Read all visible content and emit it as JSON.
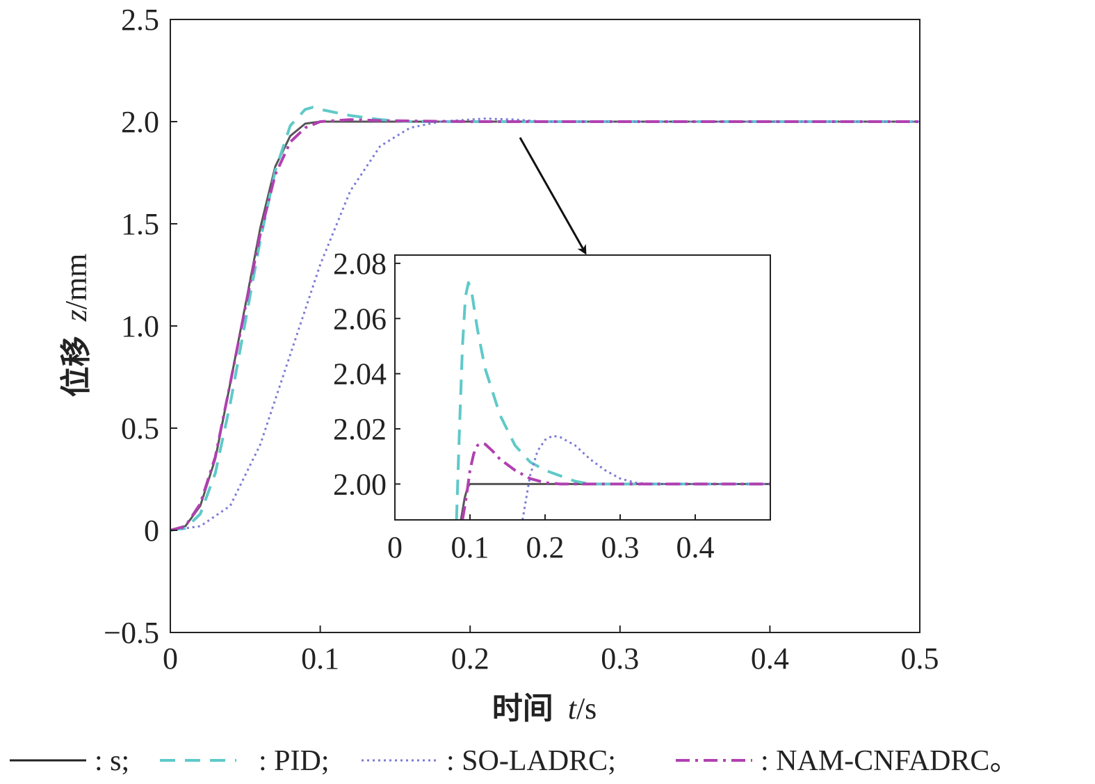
{
  "chart_data": [
    {
      "type": "line",
      "name": "main",
      "xlabel_cn": "时间",
      "xlabel_var": "t",
      "xlabel_unit": "/s",
      "ylabel_cn": "位移",
      "ylabel_var": "z",
      "ylabel_unit": "/mm",
      "xlim": [
        0,
        0.5
      ],
      "ylim": [
        -0.5,
        2.5
      ],
      "xticks": [
        0,
        0.1,
        0.2,
        0.3,
        0.4,
        0.5
      ],
      "xtick_labels": [
        "0",
        "0.1",
        "0.2",
        "0.3",
        "0.4",
        "0.5"
      ],
      "yticks": [
        -0.5,
        0,
        0.5,
        1.0,
        1.5,
        2.0,
        2.5
      ],
      "ytick_labels": [
        "−0.5",
        "0",
        "0.5",
        "1.0",
        "1.5",
        "2.0",
        "2.5"
      ],
      "series": [
        {
          "name": "s",
          "color": "#555555",
          "dash": "solid",
          "x": [
            0,
            0.01,
            0.02,
            0.03,
            0.04,
            0.05,
            0.06,
            0.07,
            0.08,
            0.09,
            0.1,
            0.2,
            0.3,
            0.4,
            0.5
          ],
          "y": [
            0,
            0.02,
            0.12,
            0.35,
            0.72,
            1.1,
            1.48,
            1.78,
            1.93,
            1.99,
            2.0,
            2.0,
            2.0,
            2.0,
            2.0
          ]
        },
        {
          "name": "PID",
          "color": "#5fc9c9",
          "dash": "dashed",
          "x": [
            0,
            0.01,
            0.02,
            0.03,
            0.04,
            0.05,
            0.06,
            0.07,
            0.08,
            0.09,
            0.095,
            0.1,
            0.12,
            0.14,
            0.16,
            0.2,
            0.3,
            0.4,
            0.5
          ],
          "y": [
            0,
            0.01,
            0.08,
            0.28,
            0.62,
            1.02,
            1.42,
            1.76,
            1.98,
            2.06,
            2.07,
            2.06,
            2.03,
            2.01,
            2.0,
            2.0,
            2.0,
            2.0,
            2.0
          ]
        },
        {
          "name": "SO-LADRC",
          "color": "#7b7bd6",
          "dash": "dotted",
          "x": [
            0,
            0.02,
            0.04,
            0.06,
            0.08,
            0.1,
            0.12,
            0.14,
            0.16,
            0.18,
            0.2,
            0.21,
            0.23,
            0.25,
            0.3,
            0.4,
            0.5
          ],
          "y": [
            0,
            0.02,
            0.12,
            0.42,
            0.86,
            1.3,
            1.66,
            1.88,
            1.97,
            2.0,
            2.01,
            2.015,
            2.01,
            2.0,
            2.0,
            2.0,
            2.0
          ]
        },
        {
          "name": "NAM-CNFADRC",
          "color": "#b040b0",
          "dash": "dashdot",
          "x": [
            0,
            0.01,
            0.02,
            0.03,
            0.04,
            0.05,
            0.06,
            0.07,
            0.08,
            0.09,
            0.1,
            0.12,
            0.14,
            0.2,
            0.3,
            0.4,
            0.5
          ],
          "y": [
            0,
            0.02,
            0.13,
            0.36,
            0.72,
            1.09,
            1.45,
            1.74,
            1.9,
            1.97,
            2.0,
            2.01,
            2.005,
            2.0,
            2.0,
            2.0,
            2.0
          ]
        }
      ]
    },
    {
      "type": "line",
      "name": "inset",
      "xlim": [
        0,
        0.5
      ],
      "ylim": [
        1.987,
        2.083
      ],
      "xticks": [
        0,
        0.1,
        0.2,
        0.3,
        0.4
      ],
      "xtick_labels": [
        "0",
        "0.1",
        "0.2",
        "0.3",
        "0.4"
      ],
      "yticks": [
        2.0,
        2.02,
        2.04,
        2.06,
        2.08
      ],
      "ytick_labels": [
        "2.00",
        "2.02",
        "2.04",
        "2.06",
        "2.08"
      ],
      "series": [
        {
          "name": "s",
          "color": "#555555",
          "dash": "solid",
          "x": [
            0.088,
            0.093,
            0.097,
            0.1,
            0.5
          ],
          "y": [
            1.987,
            1.995,
            1.999,
            2.0,
            2.0
          ]
        },
        {
          "name": "PID",
          "color": "#5fc9c9",
          "dash": "dashed",
          "x": [
            0.082,
            0.086,
            0.09,
            0.094,
            0.098,
            0.102,
            0.11,
            0.12,
            0.14,
            0.16,
            0.18,
            0.2,
            0.22,
            0.24,
            0.26,
            0.3,
            0.5
          ],
          "y": [
            1.987,
            2.02,
            2.05,
            2.068,
            2.073,
            2.07,
            2.056,
            2.042,
            2.025,
            2.014,
            2.008,
            2.005,
            2.003,
            2.001,
            2.0,
            2.0,
            2.0
          ]
        },
        {
          "name": "SO-LADRC",
          "color": "#7b7bd6",
          "dash": "dotted",
          "x": [
            0.17,
            0.175,
            0.18,
            0.19,
            0.2,
            0.21,
            0.22,
            0.24,
            0.26,
            0.28,
            0.3,
            0.32,
            0.34,
            0.5
          ],
          "y": [
            1.987,
            1.995,
            2.003,
            2.012,
            2.016,
            2.0175,
            2.017,
            2.014,
            2.009,
            2.005,
            2.002,
            2.0005,
            2.0,
            2.0
          ]
        },
        {
          "name": "NAM-CNFADRC",
          "color": "#b040b0",
          "dash": "dashdot",
          "x": [
            0.09,
            0.095,
            0.1,
            0.105,
            0.11,
            0.115,
            0.12,
            0.13,
            0.14,
            0.16,
            0.18,
            0.2,
            0.22,
            0.5
          ],
          "y": [
            1.987,
            1.995,
            2.005,
            2.011,
            2.014,
            2.0148,
            2.0145,
            2.012,
            2.009,
            2.005,
            2.002,
            2.0005,
            2.0,
            2.0
          ]
        }
      ]
    }
  ],
  "legend": [
    {
      "series": "s",
      "label": ": s;",
      "color": "#222222",
      "dash": "solid"
    },
    {
      "series": "PID",
      "label": ": PID;",
      "color": "#5fc9c9",
      "dash": "dashed"
    },
    {
      "series": "SO-LADRC",
      "label": ": SO-LADRC;",
      "color": "#7b7bd6",
      "dash": "dotted"
    },
    {
      "series": "NAM-CNFADRC",
      "label": ": NAM-CNFADRC。",
      "color": "#b040b0",
      "dash": "dashdot"
    }
  ]
}
